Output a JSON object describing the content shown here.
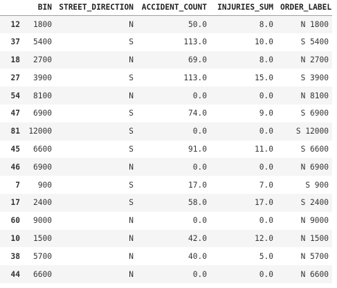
{
  "table": {
    "columns": [
      "",
      "BIN",
      "STREET_DIRECTION",
      "ACCIDENT_COUNT",
      "INJURIES_SUM",
      "ORDER_LABEL"
    ],
    "rows": [
      {
        "index": "12",
        "bin": "1800",
        "street_direction": "N",
        "accident_count": "50.0",
        "injuries_sum": "8.0",
        "order_label": "N 1800"
      },
      {
        "index": "37",
        "bin": "5400",
        "street_direction": "S",
        "accident_count": "113.0",
        "injuries_sum": "10.0",
        "order_label": "S 5400"
      },
      {
        "index": "18",
        "bin": "2700",
        "street_direction": "N",
        "accident_count": "69.0",
        "injuries_sum": "8.0",
        "order_label": "N 2700"
      },
      {
        "index": "27",
        "bin": "3900",
        "street_direction": "S",
        "accident_count": "113.0",
        "injuries_sum": "15.0",
        "order_label": "S 3900"
      },
      {
        "index": "54",
        "bin": "8100",
        "street_direction": "N",
        "accident_count": "0.0",
        "injuries_sum": "0.0",
        "order_label": "N 8100"
      },
      {
        "index": "47",
        "bin": "6900",
        "street_direction": "S",
        "accident_count": "74.0",
        "injuries_sum": "9.0",
        "order_label": "S 6900"
      },
      {
        "index": "81",
        "bin": "12000",
        "street_direction": "S",
        "accident_count": "0.0",
        "injuries_sum": "0.0",
        "order_label": "S 12000"
      },
      {
        "index": "45",
        "bin": "6600",
        "street_direction": "S",
        "accident_count": "91.0",
        "injuries_sum": "11.0",
        "order_label": "S 6600"
      },
      {
        "index": "46",
        "bin": "6900",
        "street_direction": "N",
        "accident_count": "0.0",
        "injuries_sum": "0.0",
        "order_label": "N 6900"
      },
      {
        "index": "7",
        "bin": "900",
        "street_direction": "S",
        "accident_count": "17.0",
        "injuries_sum": "7.0",
        "order_label": "S 900"
      },
      {
        "index": "17",
        "bin": "2400",
        "street_direction": "S",
        "accident_count": "58.0",
        "injuries_sum": "17.0",
        "order_label": "S 2400"
      },
      {
        "index": "60",
        "bin": "9000",
        "street_direction": "N",
        "accident_count": "0.0",
        "injuries_sum": "0.0",
        "order_label": "N 9000"
      },
      {
        "index": "10",
        "bin": "1500",
        "street_direction": "N",
        "accident_count": "42.0",
        "injuries_sum": "12.0",
        "order_label": "N 1500"
      },
      {
        "index": "38",
        "bin": "5700",
        "street_direction": "N",
        "accident_count": "40.0",
        "injuries_sum": "5.0",
        "order_label": "N 5700"
      },
      {
        "index": "44",
        "bin": "6600",
        "street_direction": "N",
        "accident_count": "0.0",
        "injuries_sum": "0.0",
        "order_label": "N 6600"
      }
    ]
  }
}
